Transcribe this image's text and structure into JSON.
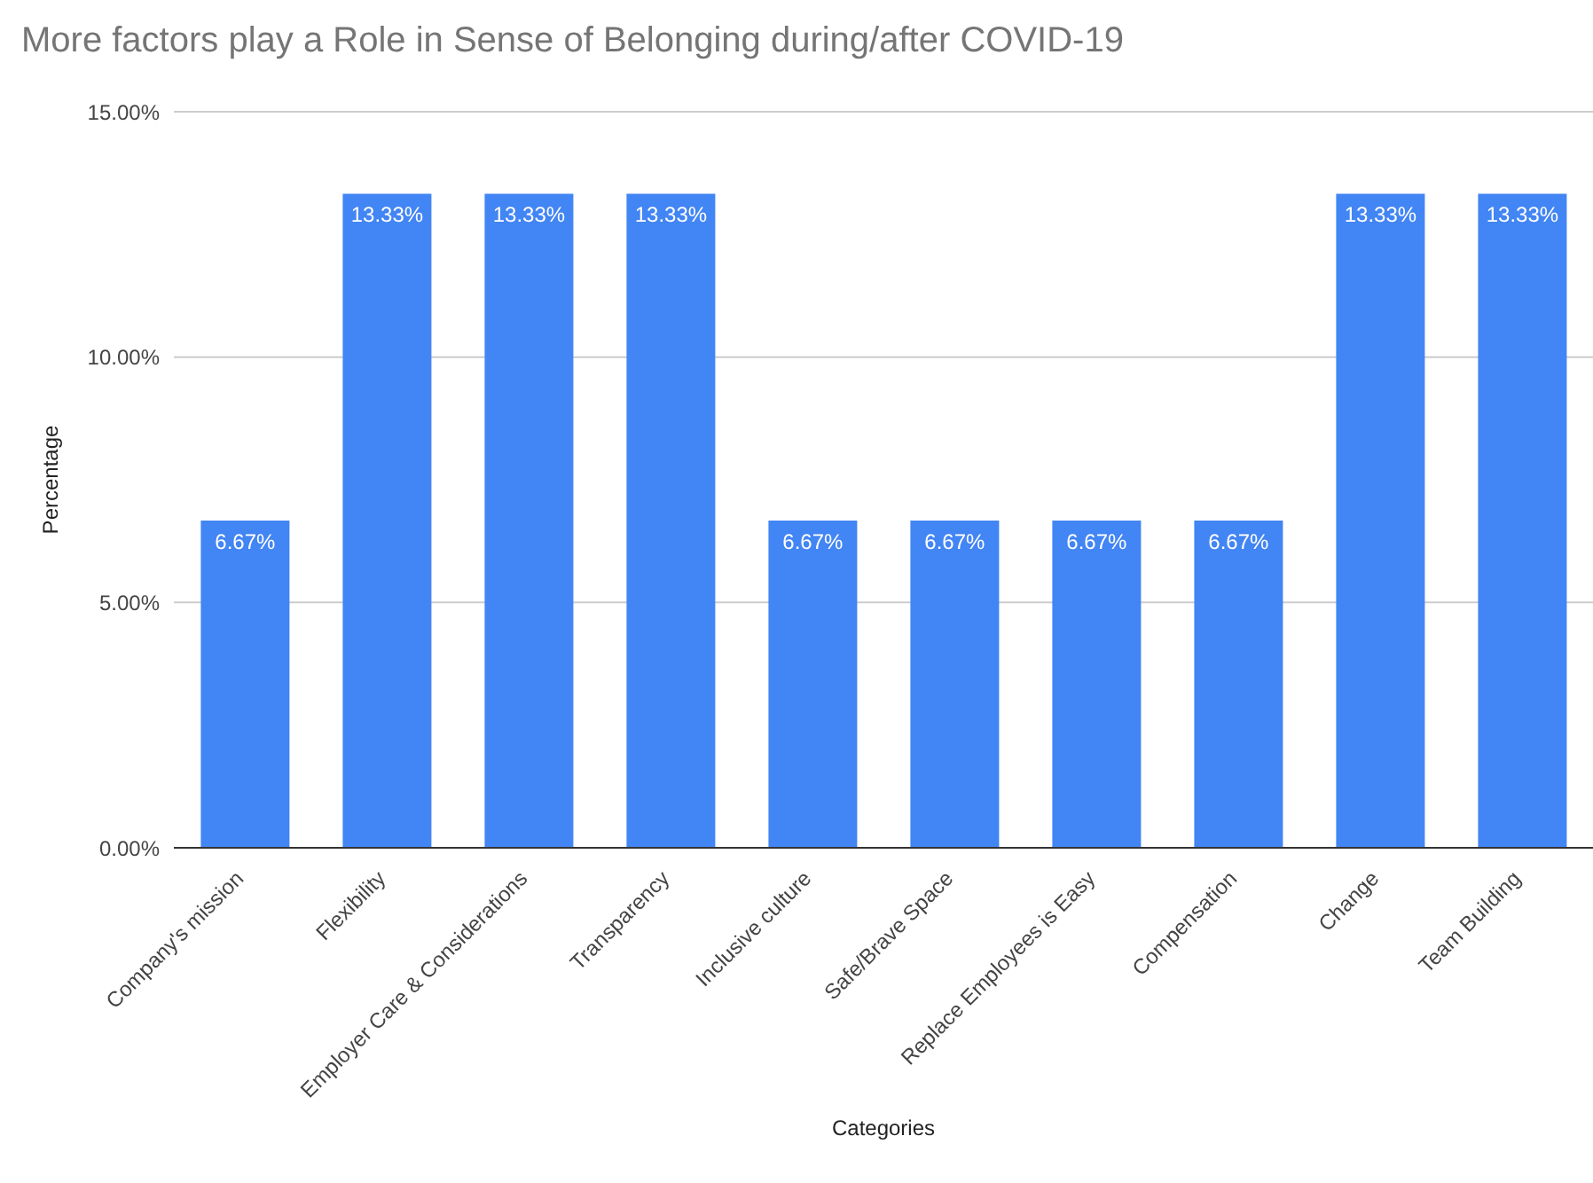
{
  "chart_data": {
    "type": "bar",
    "title": "More factors play a Role in Sense of Belonging during/after COVID-19",
    "xlabel": "Categories",
    "ylabel": "Percentage",
    "categories": [
      "Company's mission",
      "Flexibility",
      "Employer Care & Considerations",
      "Transparency",
      "Inclusive culture",
      "Safe/Brave Space",
      "Replace Employees is Easy",
      "Compensation",
      "Change",
      "Team Building"
    ],
    "values": [
      6.67,
      13.33,
      13.33,
      13.33,
      6.67,
      6.67,
      6.67,
      6.67,
      13.33,
      13.33
    ],
    "value_labels": [
      "6.67%",
      "13.33%",
      "13.33%",
      "13.33%",
      "6.67%",
      "6.67%",
      "6.67%",
      "6.67%",
      "13.33%",
      "13.33%"
    ],
    "color": "#4285f4",
    "ylim": [
      0,
      15
    ],
    "yticks": [
      {
        "value": 0,
        "label": "0.00%"
      },
      {
        "value": 5,
        "label": "5.00%"
      },
      {
        "value": 10,
        "label": "10.00%"
      },
      {
        "value": 15,
        "label": "15.00%"
      }
    ],
    "grid": "y",
    "legend": false
  }
}
